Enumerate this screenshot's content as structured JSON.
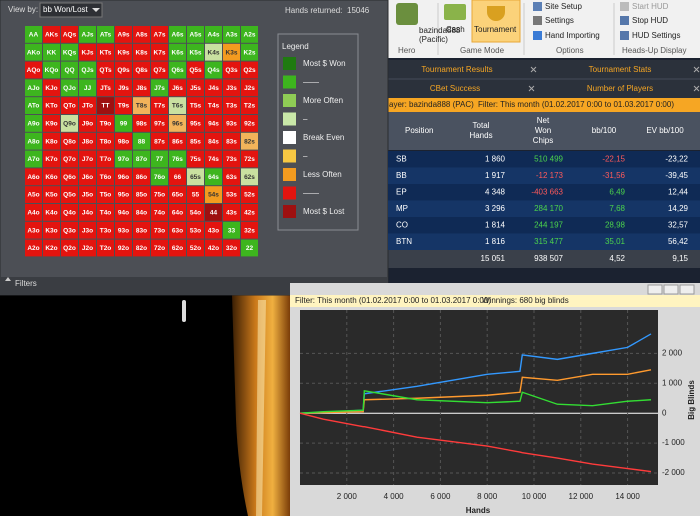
{
  "hand_grid": {
    "view_by_label": "View by:",
    "view_by_value": "bb Won/Lost",
    "hands_returned_label": "Hands returned:",
    "hands_returned": 15046,
    "rows": [
      {
        "cells": [
          "AA",
          "AKs",
          "AQs",
          "AJs",
          "ATs",
          "A9s",
          "A8s",
          "A7s",
          "A6s",
          "A5s",
          "A4s",
          "A3s",
          "A2s"
        ],
        "colors": [
          "#3db51e",
          "#e3140f",
          "#e3140f",
          "#3db51e",
          "#3db51e",
          "#e3140f",
          "#e3140f",
          "#e3140f",
          "#3db51e",
          "#3db51e",
          "#3db51e",
          "#3db51e",
          "#3db51e"
        ]
      },
      {
        "cells": [
          "AKo",
          "KK",
          "KQs",
          "KJs",
          "KTs",
          "K9s",
          "K8s",
          "K7s",
          "K6s",
          "K5s",
          "K4s",
          "K3s",
          "K2s"
        ],
        "colors": [
          "#3db51e",
          "#3db51e",
          "#3db51e",
          "#e3140f",
          "#e3140f",
          "#e3140f",
          "#e3140f",
          "#e3140f",
          "#3db51e",
          "#3db51e",
          "#c9e0a0",
          "#f39b1f",
          "#3db51e"
        ]
      },
      {
        "cells": [
          "AQo",
          "KQo",
          "QQ",
          "QJs",
          "QTs",
          "Q9s",
          "Q8s",
          "Q7s",
          "Q6s",
          "Q5s",
          "Q4s",
          "Q3s",
          "Q2s"
        ],
        "colors": [
          "#e3140f",
          "#3db51e",
          "#3db51e",
          "#3db51e",
          "#e3140f",
          "#e3140f",
          "#e3140f",
          "#e3140f",
          "#3db51e",
          "#e3140f",
          "#3db51e",
          "#e3140f",
          "#e3140f"
        ]
      },
      {
        "cells": [
          "AJo",
          "KJo",
          "QJo",
          "JJ",
          "JTs",
          "J9s",
          "J8s",
          "J7s",
          "J6s",
          "J5s",
          "J4s",
          "J3s",
          "J2s"
        ],
        "colors": [
          "#3db51e",
          "#e3140f",
          "#3db51e",
          "#3db51e",
          "#e3140f",
          "#e3140f",
          "#e3140f",
          "#3db51e",
          "#e3140f",
          "#e3140f",
          "#e3140f",
          "#e3140f",
          "#e3140f"
        ]
      },
      {
        "cells": [
          "ATo",
          "KTo",
          "QTo",
          "JTo",
          "TT",
          "T9s",
          "T8s",
          "T7s",
          "T6s",
          "T5s",
          "T4s",
          "T3s",
          "T2s"
        ],
        "colors": [
          "#3db51e",
          "#e3140f",
          "#e3140f",
          "#e3140f",
          "#9e1010",
          "#e3140f",
          "#f2b35a",
          "#e3140f",
          "#c9e0a0",
          "#e3140f",
          "#e3140f",
          "#e3140f",
          "#e3140f"
        ]
      },
      {
        "cells": [
          "A9o",
          "K9o",
          "Q9o",
          "J9o",
          "T9o",
          "99",
          "98s",
          "97s",
          "96s",
          "95s",
          "94s",
          "93s",
          "92s"
        ],
        "colors": [
          "#3db51e",
          "#e3140f",
          "#c9e0a0",
          "#e3140f",
          "#e3140f",
          "#3db51e",
          "#e3140f",
          "#e3140f",
          "#f2b35a",
          "#e3140f",
          "#e3140f",
          "#e3140f",
          "#e3140f"
        ]
      },
      {
        "cells": [
          "A8o",
          "K8o",
          "Q8o",
          "J8o",
          "T8o",
          "98o",
          "88",
          "87s",
          "86s",
          "85s",
          "84s",
          "83s",
          "82s"
        ],
        "colors": [
          "#3db51e",
          "#e3140f",
          "#e3140f",
          "#e3140f",
          "#e3140f",
          "#e3140f",
          "#3db51e",
          "#e3140f",
          "#e3140f",
          "#e3140f",
          "#e3140f",
          "#e3140f",
          "#f2b35a"
        ]
      },
      {
        "cells": [
          "A7o",
          "K7o",
          "Q7o",
          "J7o",
          "T7o",
          "97o",
          "87o",
          "77",
          "76s",
          "75s",
          "74s",
          "73s",
          "72s"
        ],
        "colors": [
          "#3db51e",
          "#e3140f",
          "#e3140f",
          "#e3140f",
          "#e3140f",
          "#3db51e",
          "#3db51e",
          "#3db51e",
          "#3db51e",
          "#e3140f",
          "#e3140f",
          "#e3140f",
          "#e3140f"
        ]
      },
      {
        "cells": [
          "A6o",
          "K6o",
          "Q6o",
          "J6o",
          "T6o",
          "96o",
          "86o",
          "76o",
          "66",
          "65s",
          "64s",
          "63s",
          "62s"
        ],
        "colors": [
          "#e3140f",
          "#e3140f",
          "#e3140f",
          "#e3140f",
          "#e3140f",
          "#e3140f",
          "#e3140f",
          "#3db51e",
          "#e3140f",
          "#c9e0a0",
          "#3db51e",
          "#e3140f",
          "#c9e0a0"
        ]
      },
      {
        "cells": [
          "A5o",
          "K5o",
          "Q5o",
          "J5o",
          "T5o",
          "95o",
          "85o",
          "75o",
          "65o",
          "55",
          "54s",
          "53s",
          "52s"
        ],
        "colors": [
          "#e3140f",
          "#e3140f",
          "#e3140f",
          "#e3140f",
          "#e3140f",
          "#e3140f",
          "#e3140f",
          "#e3140f",
          "#e3140f",
          "#e3140f",
          "#f39b1f",
          "#e3140f",
          "#e3140f"
        ]
      },
      {
        "cells": [
          "A4o",
          "K4o",
          "Q4o",
          "J4o",
          "T4o",
          "94o",
          "84o",
          "74o",
          "64o",
          "54o",
          "44",
          "43s",
          "42s"
        ],
        "colors": [
          "#e3140f",
          "#e3140f",
          "#e3140f",
          "#e3140f",
          "#e3140f",
          "#e3140f",
          "#e3140f",
          "#e3140f",
          "#e3140f",
          "#e3140f",
          "#9e1010",
          "#e3140f",
          "#e3140f"
        ]
      },
      {
        "cells": [
          "A3o",
          "K3o",
          "Q3o",
          "J3o",
          "T3o",
          "93o",
          "83o",
          "73o",
          "63o",
          "53o",
          "43o",
          "33",
          "32s"
        ],
        "colors": [
          "#e3140f",
          "#e3140f",
          "#e3140f",
          "#e3140f",
          "#e3140f",
          "#e3140f",
          "#e3140f",
          "#e3140f",
          "#e3140f",
          "#e3140f",
          "#e3140f",
          "#3db51e",
          "#e3140f"
        ]
      },
      {
        "cells": [
          "A2o",
          "K2o",
          "Q2o",
          "J2o",
          "T2o",
          "92o",
          "82o",
          "72o",
          "62o",
          "52o",
          "42o",
          "32o",
          "22"
        ],
        "colors": [
          "#e3140f",
          "#e3140f",
          "#e3140f",
          "#e3140f",
          "#e3140f",
          "#e3140f",
          "#e3140f",
          "#e3140f",
          "#e3140f",
          "#e3140f",
          "#e3140f",
          "#e3140f",
          "#3db51e"
        ]
      }
    ],
    "legend": {
      "title": "Legend",
      "items": [
        {
          "label": "Most $ Won",
          "color": "#1f7a10"
        },
        {
          "label": "——",
          "color": "#3db51e"
        },
        {
          "label": "More Often",
          "color": "#8fcc55"
        },
        {
          "label": "–",
          "color": "#c9e8a8"
        },
        {
          "label": "Break Even",
          "color": "#ffffff"
        },
        {
          "label": "–",
          "color": "#f7c843"
        },
        {
          "label": "Less Often",
          "color": "#f39b1f"
        },
        {
          "label": "——",
          "color": "#e3140f"
        },
        {
          "label": "Most $ Lost",
          "color": "#9e1010"
        }
      ]
    },
    "footer": "Filters"
  },
  "ribbon": {
    "hero_name": "bazinda888",
    "hero_site": "(Pacific)",
    "hero_group": "Hero",
    "cash": "Cash",
    "tournament": "Tournament",
    "game_mode_group": "Game Mode",
    "site_setup": "Site Setup",
    "settings": "Settings",
    "hand_importing": "Hand Importing",
    "options_group": "Options",
    "start_hud": "Start HUD",
    "stop_hud": "Stop HUD",
    "hud_settings": "HUD Settings",
    "hud_group": "Heads-Up Display"
  },
  "tabs": [
    "Tournament Results",
    "Tournament Stats",
    "CBet Success",
    "Number of Players"
  ],
  "player_bar": {
    "player": "ayer: bazinda888 (PAC)",
    "filter": "Filter: This month (01.02.2017 0:00 to 01.03.2017 0:00)"
  },
  "table": {
    "headers": [
      [
        "Position"
      ],
      [
        "Total",
        "Hands"
      ],
      [
        "Net",
        "Won",
        "Chips"
      ],
      [
        "bb/100"
      ],
      [
        "EV bb/100"
      ]
    ],
    "rows": [
      [
        "SB",
        "1 860",
        "510 499",
        "-22,15",
        "-23,22"
      ],
      [
        "BB",
        "1 917",
        "-12 173",
        "-31,56",
        "-39,45"
      ],
      [
        "EP",
        "4 348",
        "-403 663",
        "6,49",
        "12,44"
      ],
      [
        "MP",
        "3 296",
        "284 170",
        "7,68",
        "14,29"
      ],
      [
        "CO",
        "1 814",
        "244 197",
        "28,98",
        "32,57"
      ],
      [
        "BTN",
        "1 816",
        "315 477",
        "35,01",
        "56,42"
      ]
    ],
    "totals": [
      "15 051",
      "938 507",
      "4,52",
      "9,15"
    ]
  },
  "chart_data": {
    "type": "line",
    "filter_text": "Filter: This month (01.02.2017 0:00 to 01.03.2017 0:00)",
    "winnings_text": "Winnings: 680 big blinds",
    "x_label": "Hands",
    "y_label": "Big Blinds",
    "x": [
      0,
      1000,
      2700,
      2750,
      5000,
      8000,
      9400,
      9500,
      11000,
      12500,
      14000,
      15000
    ],
    "series": [
      {
        "color": "#3399ff",
        "values": [
          0,
          30,
          100,
          650,
          900,
          1300,
          1400,
          1950,
          1800,
          2000,
          2200,
          2650
        ]
      },
      {
        "color": "#ff9a2e",
        "values": [
          0,
          20,
          50,
          450,
          500,
          600,
          700,
          1200,
          1100,
          1300,
          1300,
          1450
        ]
      },
      {
        "color": "#33dd33",
        "values": [
          0,
          50,
          100,
          750,
          450,
          350,
          400,
          700,
          300,
          250,
          400,
          450
        ]
      },
      {
        "color": "#ff3b3b",
        "values": [
          0,
          -200,
          -450,
          -450,
          -800,
          -1100,
          -1300,
          -1320,
          -1500,
          -1700,
          -1850,
          -1950
        ]
      }
    ],
    "xlim": [
      0,
      15300
    ],
    "ylim": [
      -2400,
      3450
    ],
    "xticks": [
      {
        "value": 2000,
        "label": "2 000"
      },
      {
        "value": 4000,
        "label": "4 000"
      },
      {
        "value": 6000,
        "label": "6 000"
      },
      {
        "value": 8000,
        "label": "8 000"
      },
      {
        "value": 10000,
        "label": "10 000"
      },
      {
        "value": 12000,
        "label": "12 000"
      },
      {
        "value": 14000,
        "label": "14 000"
      }
    ],
    "yticks": [
      {
        "value": -2000,
        "label": "-2 000"
      },
      {
        "value": -1000,
        "label": "-1 000"
      },
      0,
      {
        "value": 1000,
        "label": "1 000"
      },
      {
        "value": 2000,
        "label": "2 000"
      }
    ],
    "grid": true
  }
}
